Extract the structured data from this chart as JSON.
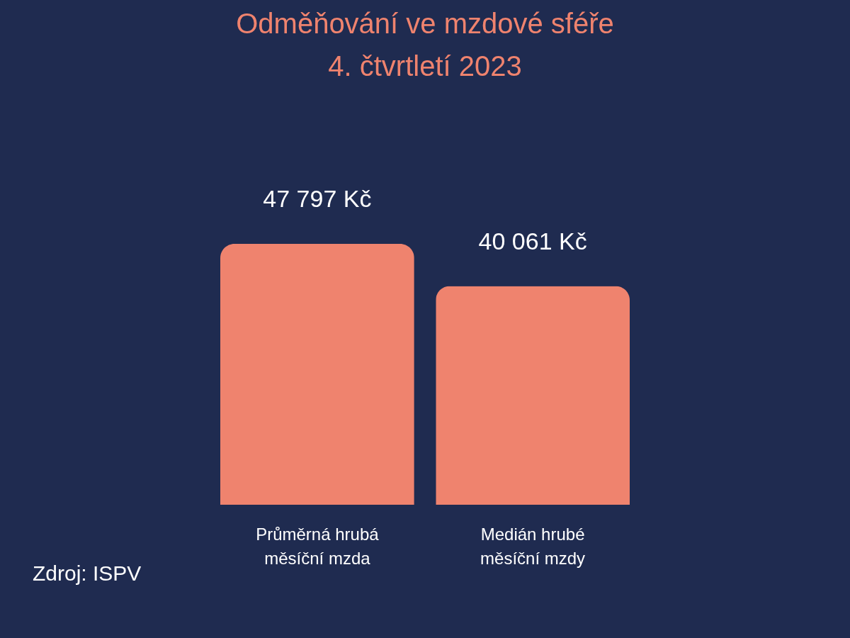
{
  "chart_data": {
    "type": "bar",
    "title": [
      "Odměňování ve mzdové sféře",
      "4. čtvrtletí 2023"
    ],
    "categories": [
      "Průměrná hrubá měsíční mzda",
      "Medián hrubé měsíční mzdy"
    ],
    "values": [
      47797,
      40061
    ],
    "value_labels": [
      "47 797 Kč",
      "40 061 Kč"
    ],
    "color": "#ef836e",
    "annotations": [
      "Zdroj: ISPV"
    ]
  }
}
